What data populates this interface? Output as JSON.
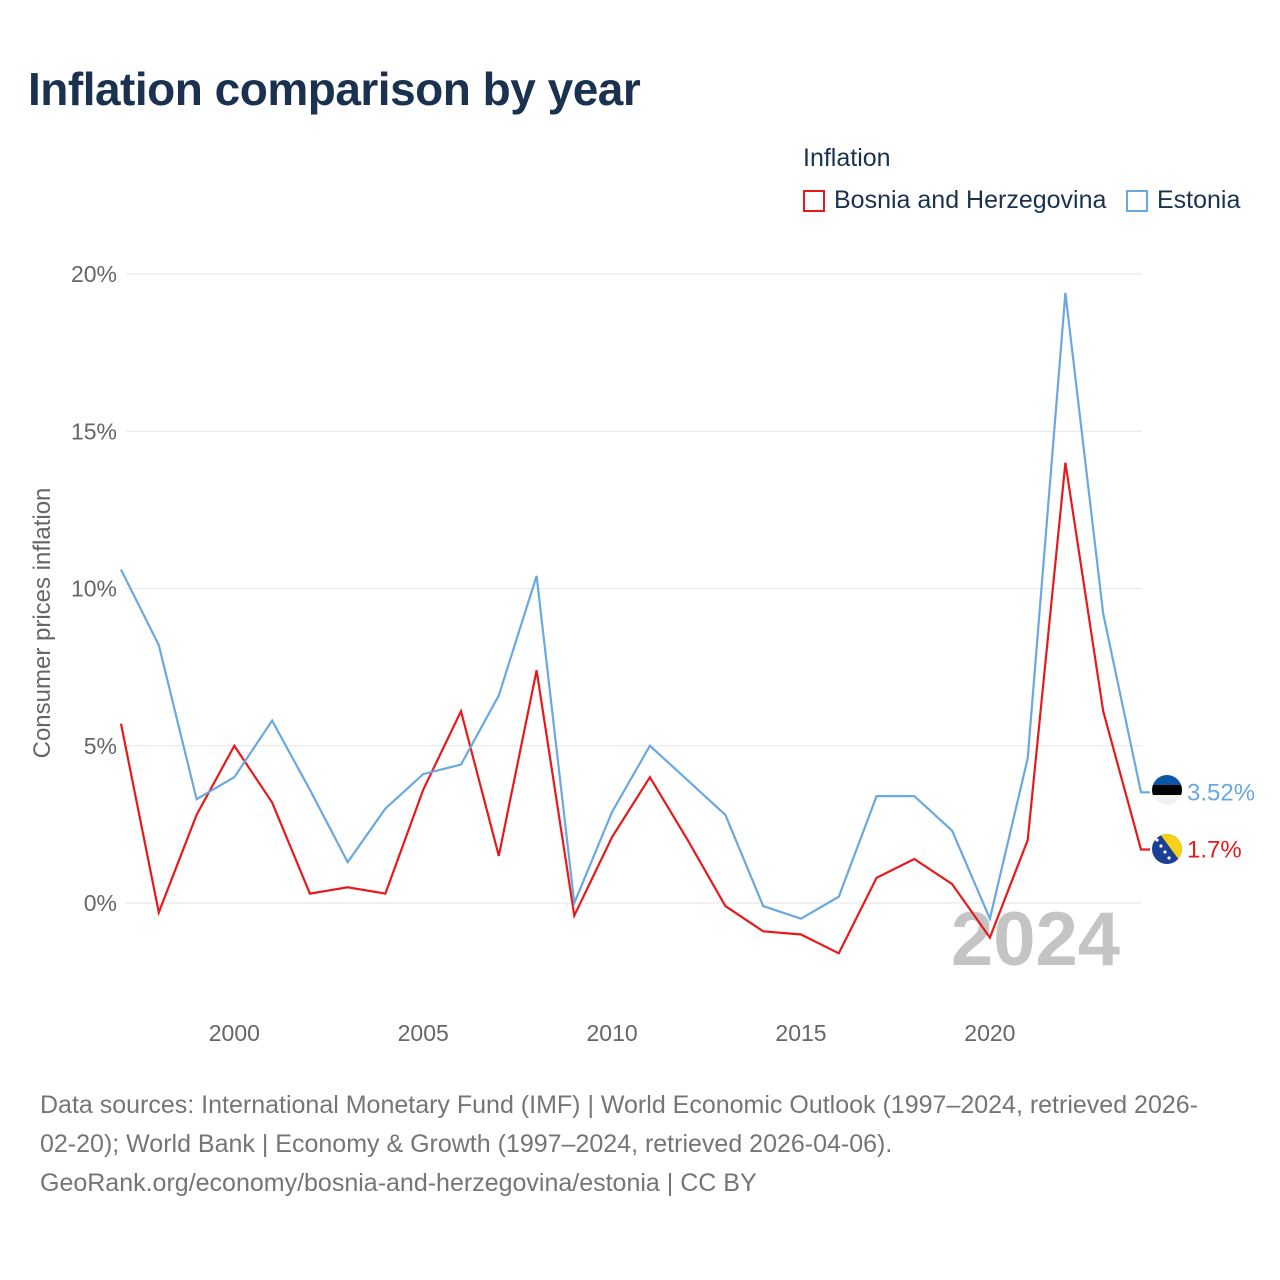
{
  "title": "Inflation comparison by year",
  "legend": {
    "title": "Inflation",
    "items": [
      {
        "label": "Bosnia and Herzegovina",
        "color": "#e8191b"
      },
      {
        "label": "Estonia",
        "color": "#6aa8e0"
      }
    ]
  },
  "chart_data": {
    "type": "line",
    "title": "Inflation comparison by year",
    "xlabel": "",
    "ylabel": "Consumer prices inflation",
    "x": [
      1997,
      1998,
      1999,
      2000,
      2001,
      2002,
      2003,
      2004,
      2005,
      2006,
      2007,
      2008,
      2009,
      2010,
      2011,
      2012,
      2013,
      2014,
      2015,
      2016,
      2017,
      2018,
      2019,
      2020,
      2021,
      2022,
      2023,
      2024
    ],
    "xlim": [
      1997,
      2024
    ],
    "ylim": [
      -3.5,
      20
    ],
    "x_ticks": [
      2000,
      2005,
      2010,
      2015,
      2020
    ],
    "y_ticks": [
      0,
      5,
      10,
      15,
      20
    ],
    "y_tick_labels": [
      "0%",
      "5%",
      "10%",
      "15%",
      "20%"
    ],
    "grid": true,
    "watermark_year": "2024",
    "series": [
      {
        "name": "Bosnia and Herzegovina",
        "color": "#e8191b",
        "values": [
          5.7,
          -0.3,
          2.8,
          5.0,
          3.2,
          0.3,
          0.5,
          0.3,
          3.6,
          6.1,
          1.5,
          7.4,
          -0.4,
          2.1,
          4.0,
          2.0,
          -0.1,
          -0.9,
          -1.0,
          -1.6,
          0.8,
          1.4,
          0.6,
          -1.1,
          2.0,
          14.0,
          6.1,
          1.7
        ],
        "end_label": "1.7%",
        "flag": "bosnia-flag"
      },
      {
        "name": "Estonia",
        "color": "#6aa8e0",
        "values": [
          10.6,
          8.2,
          3.3,
          4.0,
          5.8,
          3.6,
          1.3,
          3.0,
          4.1,
          4.4,
          6.6,
          10.4,
          0.0,
          2.9,
          5.0,
          3.9,
          2.8,
          -0.1,
          -0.5,
          0.2,
          3.4,
          3.4,
          2.3,
          -0.5,
          4.6,
          19.4,
          9.2,
          3.52
        ],
        "end_label": "3.52%",
        "flag": "estonia-flag"
      }
    ]
  },
  "footer": {
    "line1": "Data sources: International Monetary Fund (IMF) | World Economic Outlook (1997–2024, retrieved 2026-",
    "line2": "02-20); World Bank | Economy & Growth (1997–2024, retrieved 2026-04-06).",
    "line3": "GeoRank.org/economy/bosnia-and-herzegovina/estonia | CC BY"
  }
}
